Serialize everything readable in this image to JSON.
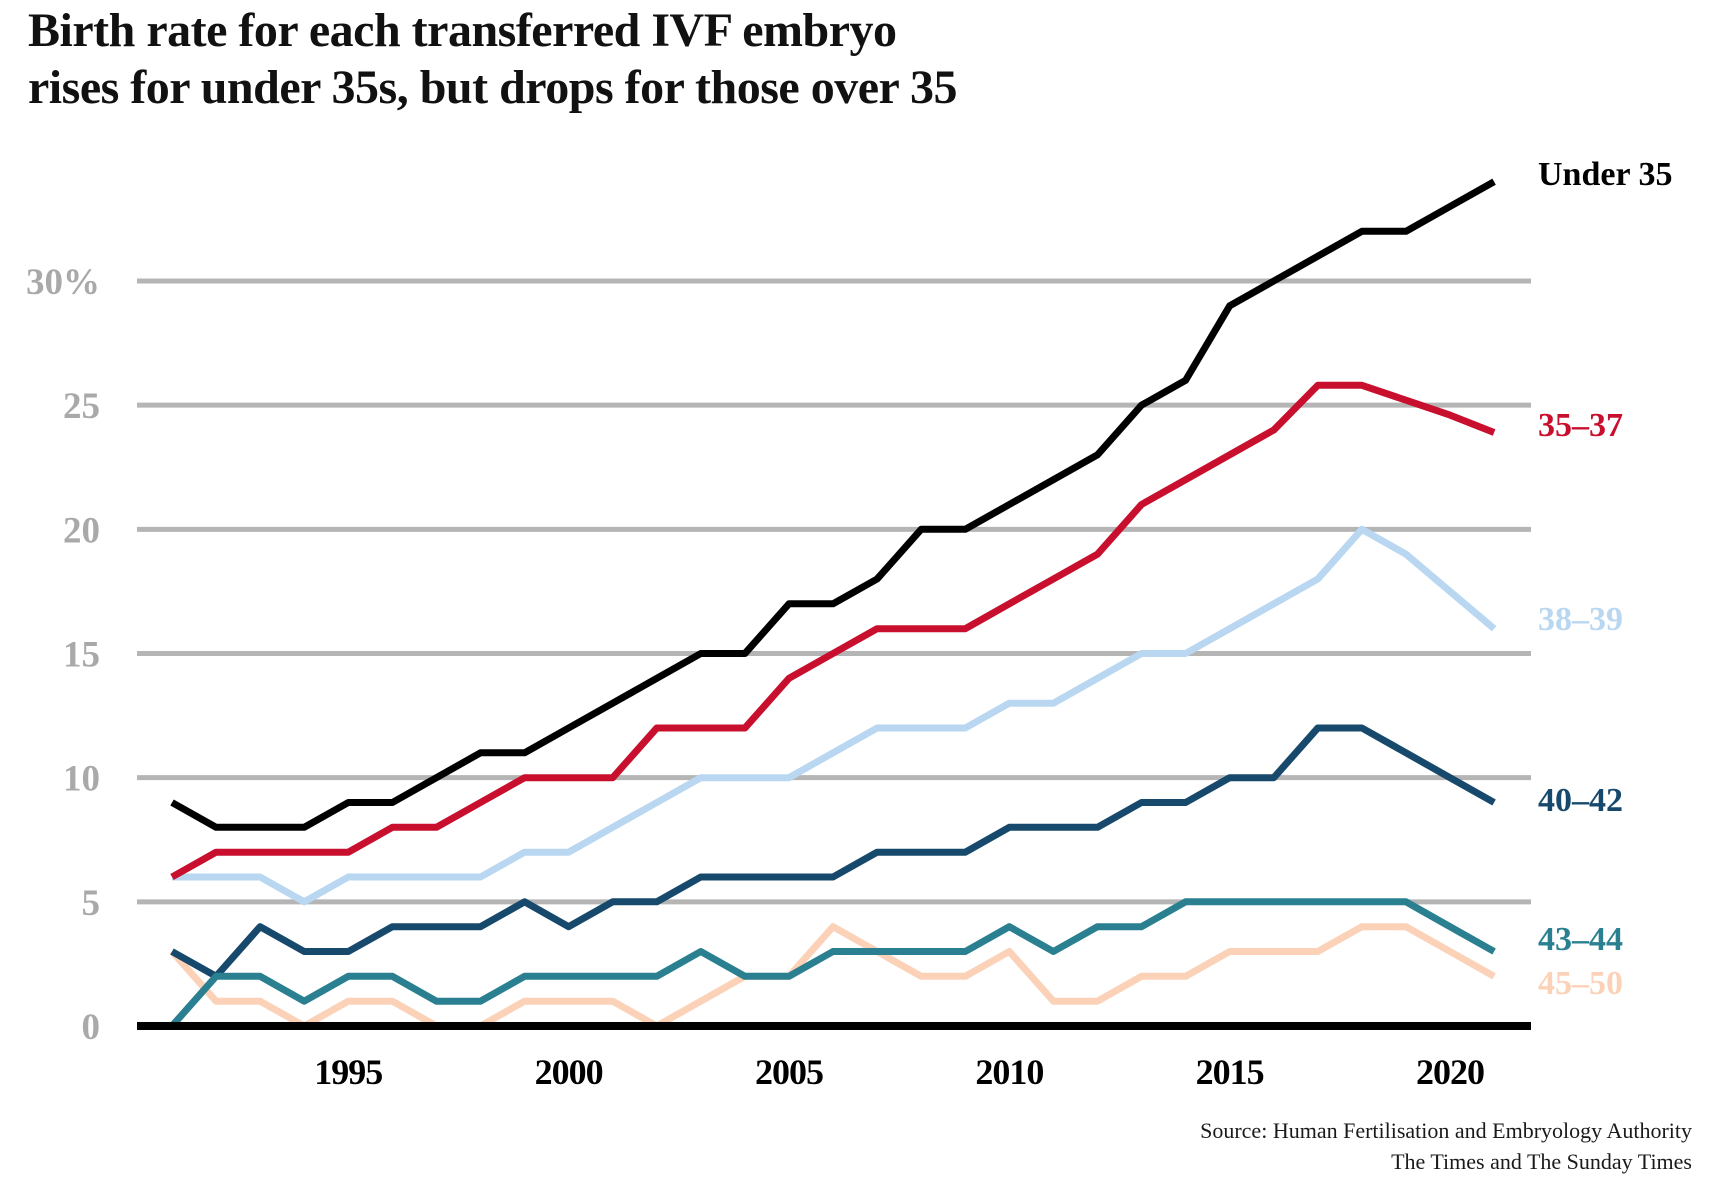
{
  "header": {
    "title_lines": [
      "Birth rate for each transferred IVF embryo",
      "rises for under 35s, but drops for those over 35"
    ]
  },
  "chart_data": {
    "type": "line",
    "title": "Birth rate for each transferred IVF embryo rises for under 35s, but drops for those over 35",
    "xlabel": "",
    "ylabel": "",
    "x": [
      1991,
      1992,
      1993,
      1994,
      1995,
      1996,
      1997,
      1998,
      1999,
      2000,
      2001,
      2002,
      2003,
      2004,
      2005,
      2006,
      2007,
      2008,
      2009,
      2010,
      2011,
      2012,
      2013,
      2014,
      2015,
      2016,
      2017,
      2018,
      2019,
      2020,
      2021
    ],
    "xticks": [
      1995,
      2000,
      2005,
      2010,
      2015,
      2020
    ],
    "ylim": [
      0,
      35
    ],
    "yticks": [
      0,
      5,
      10,
      15,
      20,
      25,
      30
    ],
    "ytick_labels": [
      "0",
      "5",
      "10",
      "15",
      "20",
      "25",
      "30%"
    ],
    "grid": "horizontal-gray",
    "legend_position": "right-end-of-lines",
    "colors": {
      "grid": "#b5b5b5",
      "axis": "#000000",
      "ytick_text": "#a9a9a9",
      "xtick_text": "#000000"
    },
    "series": [
      {
        "name": "Under 35",
        "color": "#000000",
        "values": [
          9,
          8,
          8,
          8,
          9,
          9,
          10,
          11,
          11,
          12,
          13,
          14,
          15,
          15,
          17,
          17,
          18,
          20,
          20,
          21,
          22,
          23,
          25,
          26,
          29,
          30,
          31,
          32,
          32,
          33,
          34
        ]
      },
      {
        "name": "35–37",
        "color": "#c8102e",
        "values": [
          6,
          7,
          7,
          7,
          7,
          8,
          8,
          9,
          10,
          10,
          10,
          12,
          12,
          12,
          14,
          15,
          16,
          16,
          16,
          17,
          18,
          19,
          21,
          22,
          23,
          24,
          25.8,
          25.8,
          25.2,
          24.6,
          23.9
        ]
      },
      {
        "name": "38–39",
        "color": "#bad7f2",
        "values": [
          6,
          6,
          6,
          5,
          6,
          6,
          6,
          6,
          7,
          7,
          8,
          9,
          10,
          10,
          10,
          11,
          12,
          12,
          12,
          13,
          13,
          14,
          15,
          15,
          16,
          17,
          18,
          20,
          19,
          17.5,
          16
        ]
      },
      {
        "name": "40–42",
        "color": "#17496c",
        "values": [
          3,
          2,
          4,
          3,
          3,
          4,
          4,
          4,
          5,
          4,
          5,
          5,
          6,
          6,
          6,
          6,
          7,
          7,
          7,
          8,
          8,
          8,
          9,
          9,
          10,
          10,
          12,
          12,
          11,
          10,
          9
        ]
      },
      {
        "name": "43–44",
        "color": "#2a8090",
        "values": [
          0,
          2,
          2,
          1,
          2,
          2,
          1,
          1,
          2,
          2,
          2,
          2,
          3,
          2,
          2,
          3,
          3,
          3,
          3,
          4,
          3,
          4,
          4,
          5,
          5,
          5,
          5,
          5,
          5,
          4,
          3
        ]
      },
      {
        "name": "45–50",
        "color": "#fbd2b8",
        "values": [
          3,
          1,
          1,
          0,
          1,
          1,
          0,
          0,
          1,
          1,
          1,
          0,
          1,
          2,
          2,
          4,
          3,
          2,
          2,
          3,
          1,
          1,
          2,
          2,
          3,
          3,
          3,
          4,
          4,
          3,
          2
        ]
      }
    ]
  },
  "source": {
    "line1": "Source: Human Fertilisation and Embryology Authority",
    "line2": "The Times and The Sunday Times"
  }
}
